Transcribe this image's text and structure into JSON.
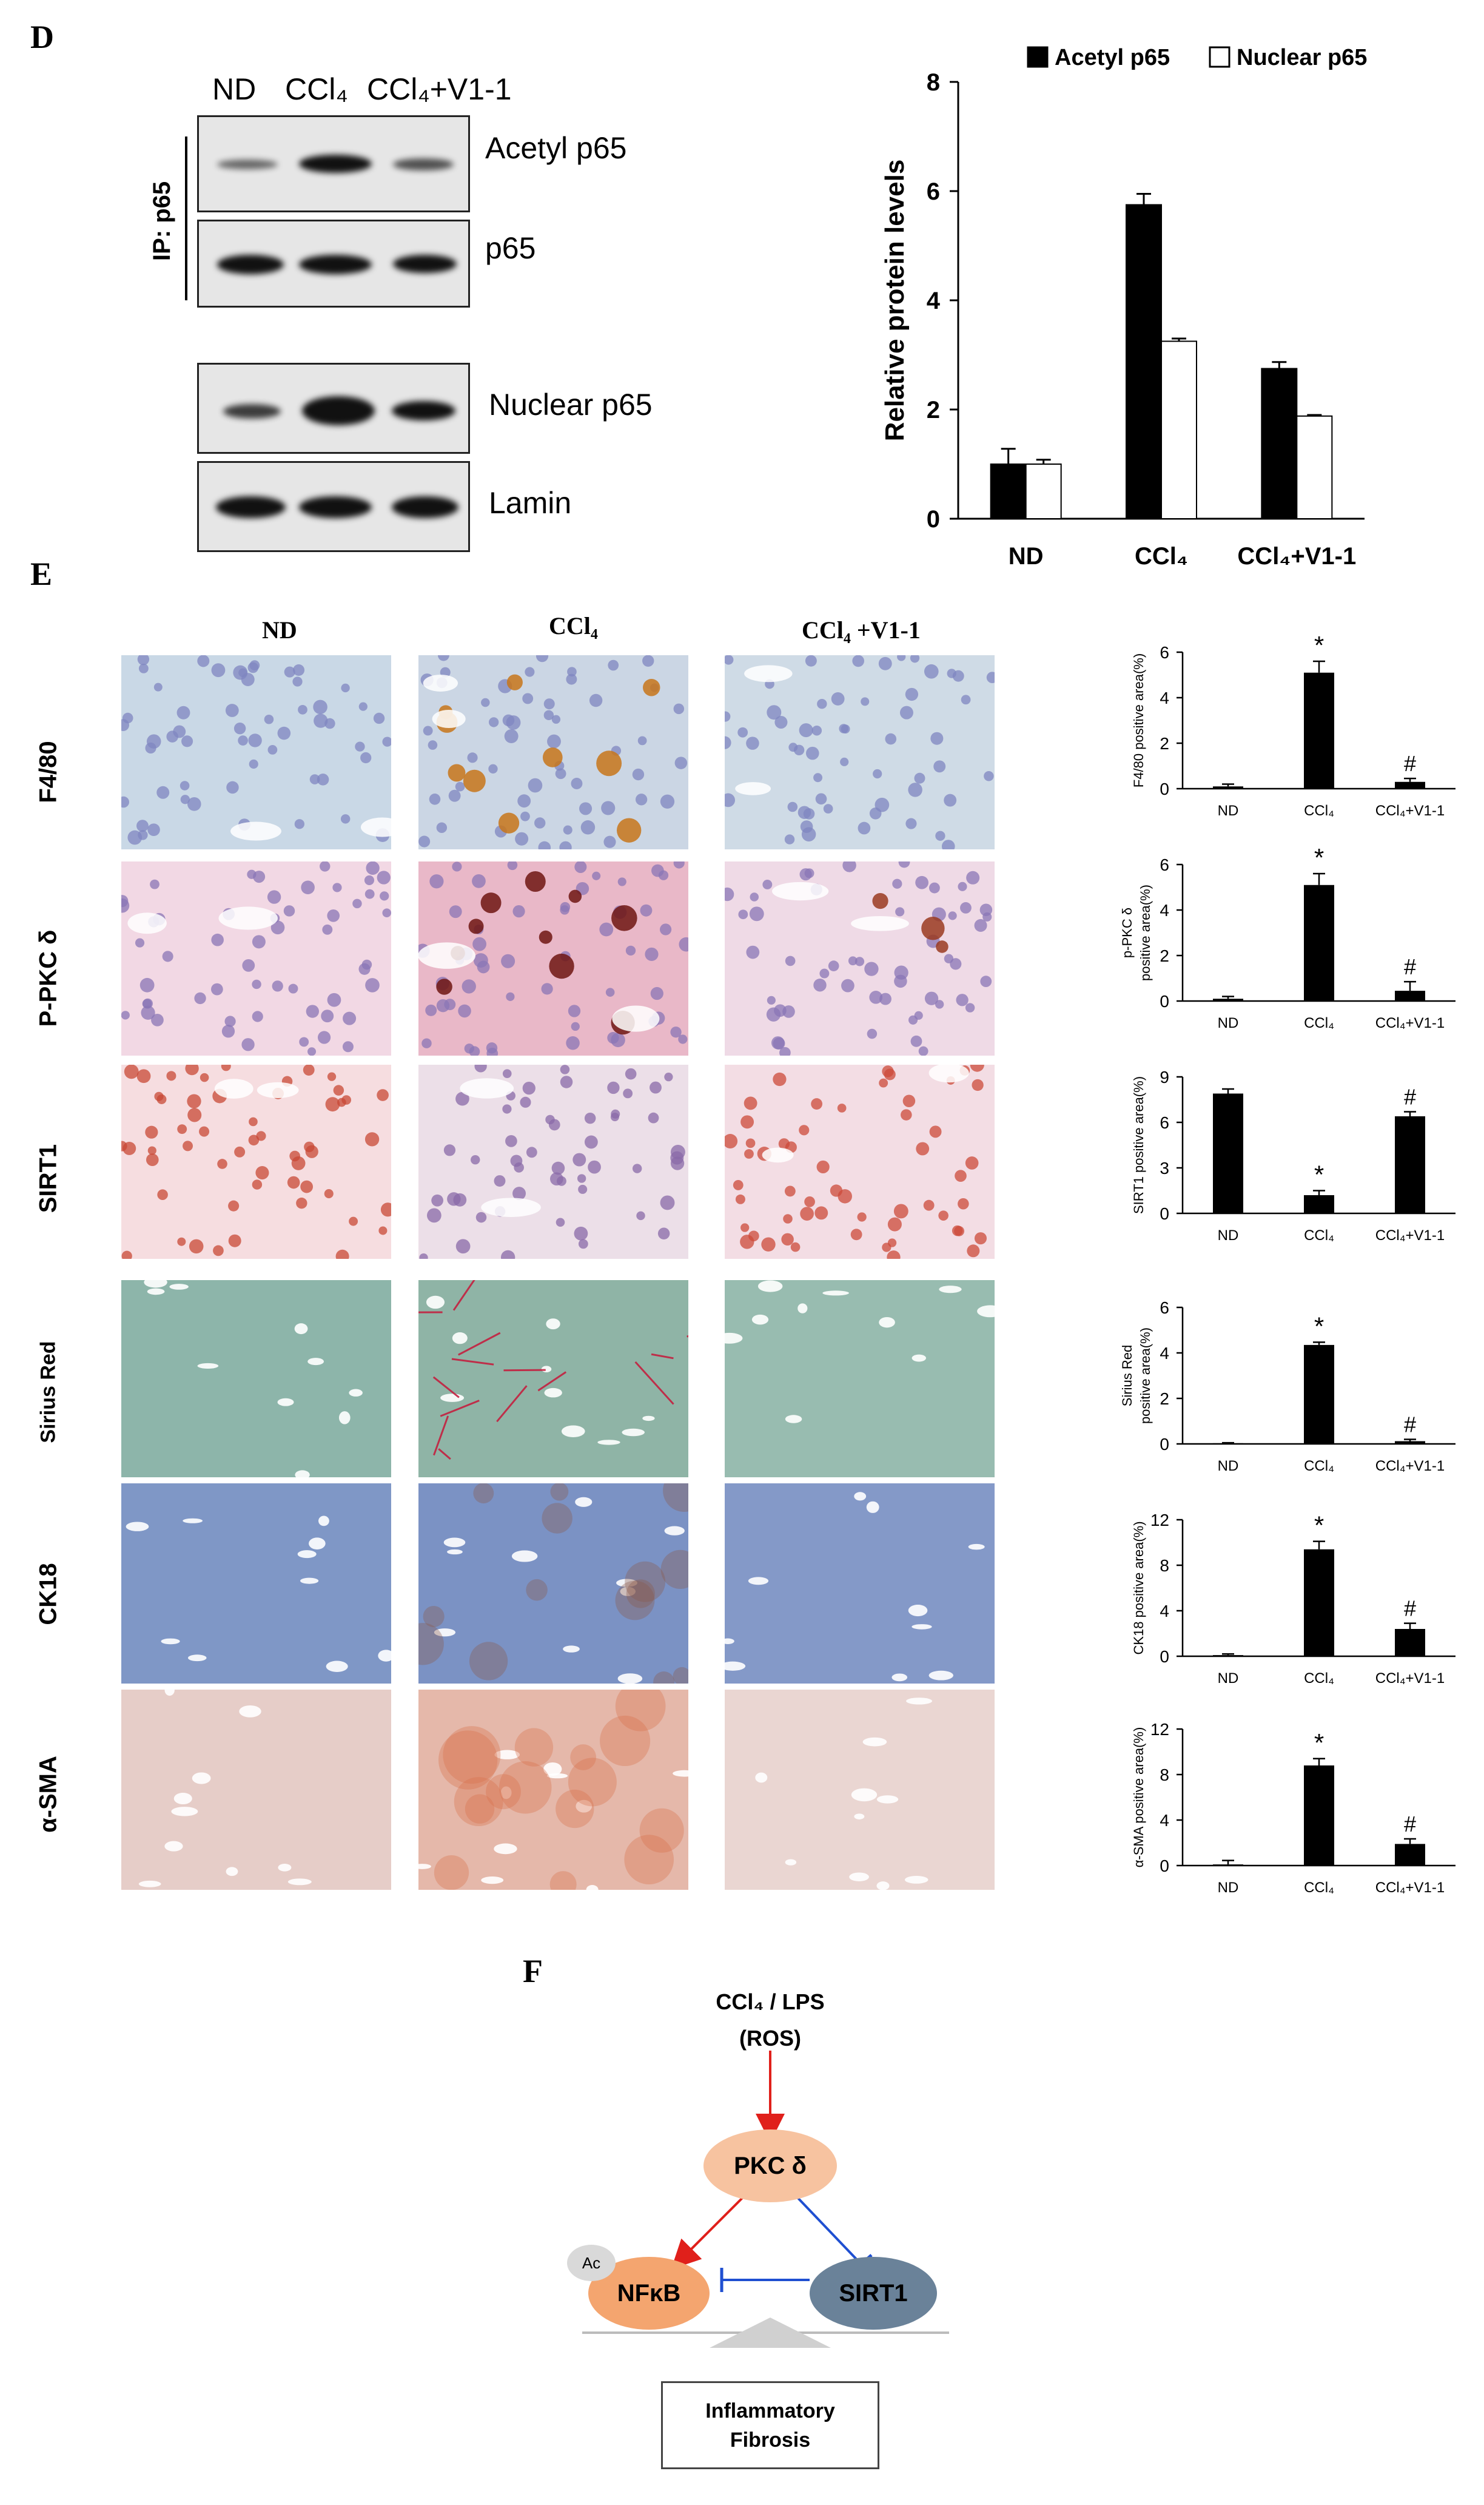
{
  "panel_d": {
    "letter": "D",
    "lanes": [
      "ND",
      "CCl₄",
      "CCl₄+V1-1"
    ],
    "ip_label": "IP: p65",
    "blot_labels": [
      "Acetyl p65",
      "p65",
      "Nuclear p65",
      "Lamin"
    ]
  },
  "panel_e": {
    "letter": "E",
    "columns": [
      "ND",
      "CCl₄",
      "CCl₄ +V1-1"
    ],
    "rows": [
      "F4/80",
      "P-PKC δ",
      "SIRT1",
      "Sirius Red",
      "CK18",
      "α-SMA"
    ]
  },
  "panel_f": {
    "letter": "F",
    "stimulus_line1": "CCl₄ / LPS",
    "stimulus_line2": "(ROS)",
    "node_pkc": "PKC δ",
    "node_nfkb": "NFκB",
    "node_sirt1": "SIRT1",
    "ac_badge": "Ac",
    "outcome_line1": "Inflammatory",
    "outcome_line2": "Fibrosis"
  },
  "colors": {
    "bar_black": "#000000",
    "bar_white": "#ffffff",
    "arrow_red": "#e0201b",
    "inhibit_blue": "#1f4fd1",
    "pkc_fill": "#f7c3a0",
    "nfkb_fill": "#f4a56f",
    "sirt1_fill": "#6a8299"
  },
  "chart_data": [
    {
      "id": "d_main",
      "type": "bar",
      "categories": [
        "ND",
        "CCl₄",
        "CCl₄+V1-1"
      ],
      "series": [
        {
          "name": "Acetyl p65",
          "values": [
            1.0,
            5.75,
            2.75
          ],
          "errors": [
            0.28,
            0.2,
            0.12
          ],
          "fill": "#000000"
        },
        {
          "name": "Nuclear p65",
          "values": [
            1.0,
            3.25,
            1.88
          ],
          "errors": [
            0.08,
            0.05,
            0.02
          ],
          "fill": "#ffffff"
        }
      ],
      "title": "",
      "xlabel": "",
      "ylabel": "Relative protein levels",
      "ylim": [
        0,
        8
      ],
      "yticks": [
        0,
        2,
        4,
        6,
        8
      ],
      "legend": "top"
    },
    {
      "id": "e_f480",
      "type": "bar",
      "categories": [
        "ND",
        "CCl₄",
        "CCl₄+V1-1"
      ],
      "values": [
        0.1,
        5.1,
        0.3
      ],
      "errors": [
        0.1,
        0.5,
        0.15
      ],
      "annotations": [
        "",
        "*",
        "#"
      ],
      "ylabel_lines": [
        "F4/80 positive area(%)"
      ],
      "ylim": [
        0,
        6
      ],
      "yticks": [
        0,
        2,
        4,
        6
      ]
    },
    {
      "id": "e_ppkc",
      "type": "bar",
      "categories": [
        "ND",
        "CCl₄",
        "CCl₄+V1-1"
      ],
      "values": [
        0.1,
        5.1,
        0.45
      ],
      "errors": [
        0.1,
        0.5,
        0.4
      ],
      "annotations": [
        "",
        "*",
        "#"
      ],
      "ylabel_lines": [
        "p-PKC δ",
        "positive area(%)"
      ],
      "ylim": [
        0,
        6
      ],
      "yticks": [
        0,
        2,
        4,
        6
      ]
    },
    {
      "id": "e_sirt1",
      "type": "bar",
      "categories": [
        "ND",
        "CCl₄",
        "CCl₄+V1-1"
      ],
      "values": [
        7.9,
        1.2,
        6.4
      ],
      "errors": [
        0.3,
        0.3,
        0.3
      ],
      "annotations": [
        "",
        "*",
        "#"
      ],
      "ylabel_lines": [
        "SIRT1 positive area(%)"
      ],
      "ylim": [
        0,
        9
      ],
      "yticks": [
        0,
        3,
        6,
        9
      ]
    },
    {
      "id": "e_sirius",
      "type": "bar",
      "categories": [
        "ND",
        "CCl₄",
        "CCl₄+V1-1"
      ],
      "values": [
        0.03,
        4.35,
        0.12
      ],
      "errors": [
        0.02,
        0.12,
        0.08
      ],
      "annotations": [
        "",
        "*",
        "#"
      ],
      "ylabel_lines": [
        "Sirius Red",
        "positive area(%)"
      ],
      "ylim": [
        0,
        6
      ],
      "yticks": [
        0,
        2,
        4,
        6
      ]
    },
    {
      "id": "e_ck18",
      "type": "bar",
      "categories": [
        "ND",
        "CCl₄",
        "CCl₄+V1-1"
      ],
      "values": [
        0.1,
        9.4,
        2.4
      ],
      "errors": [
        0.1,
        0.7,
        0.5
      ],
      "annotations": [
        "",
        "*",
        "#"
      ],
      "ylabel_lines": [
        "CK18 positive area(%)"
      ],
      "ylim": [
        0,
        12
      ],
      "yticks": [
        0,
        4,
        8,
        12
      ]
    },
    {
      "id": "e_asma",
      "type": "bar",
      "categories": [
        "ND",
        "CCl₄",
        "CCl₄+V1-1"
      ],
      "values": [
        0.1,
        8.8,
        1.9
      ],
      "errors": [
        0.35,
        0.6,
        0.45
      ],
      "annotations": [
        "",
        "*",
        "#"
      ],
      "ylabel_lines": [
        "α-SMA positive area(%)"
      ],
      "ylim": [
        0,
        12
      ],
      "yticks": [
        0,
        4,
        8,
        12
      ]
    }
  ]
}
